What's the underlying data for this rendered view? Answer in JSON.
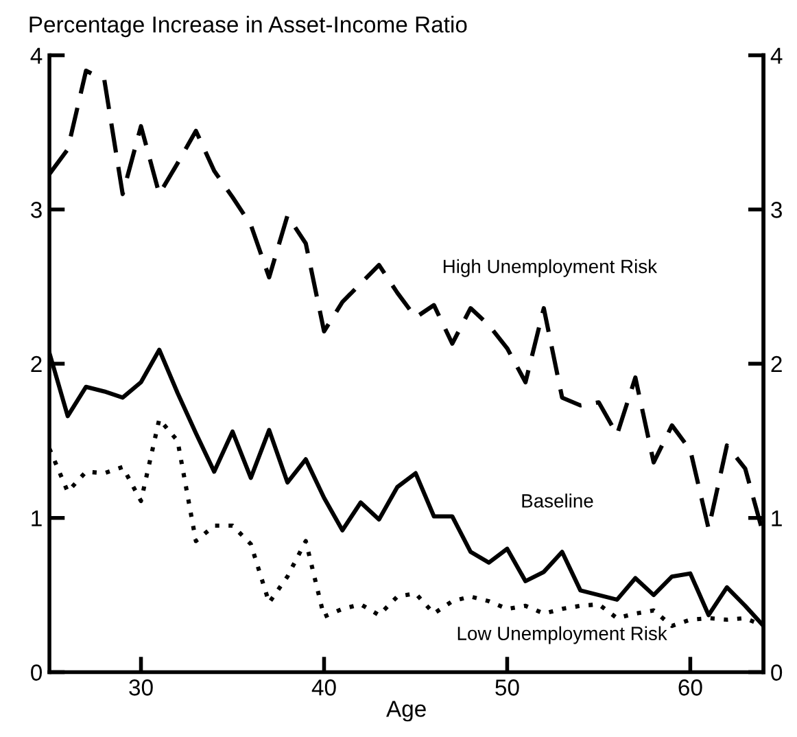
{
  "chart_data": {
    "type": "line",
    "title": "Percentage Increase in Asset-Income Ratio",
    "xlabel": "Age",
    "x": [
      25,
      26,
      27,
      28,
      29,
      30,
      31,
      32,
      33,
      34,
      35,
      36,
      37,
      38,
      39,
      40,
      41,
      42,
      43,
      44,
      45,
      46,
      47,
      48,
      49,
      50,
      51,
      52,
      53,
      54,
      55,
      56,
      57,
      58,
      59,
      60,
      61,
      62,
      63,
      64
    ],
    "series": [
      {
        "name": "High Unemployment Risk",
        "color": "#000000",
        "line_style": "dashed",
        "values": [
          3.23,
          3.39,
          3.9,
          3.84,
          3.1,
          3.54,
          3.1,
          3.3,
          3.51,
          3.25,
          3.08,
          2.9,
          2.56,
          2.96,
          2.78,
          2.21,
          2.4,
          2.52,
          2.64,
          2.46,
          2.3,
          2.38,
          2.13,
          2.36,
          2.25,
          2.1,
          1.88,
          2.36,
          1.78,
          1.73,
          1.75,
          1.54,
          1.91,
          1.36,
          1.6,
          1.44,
          0.93,
          1.47,
          1.32,
          0.89
        ]
      },
      {
        "name": "Baseline",
        "color": "#000000",
        "line_style": "solid",
        "values": [
          2.07,
          1.66,
          1.85,
          1.82,
          1.78,
          1.88,
          2.09,
          1.81,
          1.55,
          1.3,
          1.56,
          1.26,
          1.57,
          1.23,
          1.38,
          1.13,
          0.92,
          1.1,
          0.99,
          1.2,
          1.29,
          1.01,
          1.01,
          0.78,
          0.71,
          0.8,
          0.59,
          0.65,
          0.78,
          0.53,
          0.5,
          0.47,
          0.61,
          0.5,
          0.62,
          0.64,
          0.37,
          0.55,
          0.43,
          0.3
        ]
      },
      {
        "name": "Low Unemployment Risk",
        "color": "#000000",
        "line_style": "dotted",
        "values": [
          1.45,
          1.17,
          1.3,
          1.29,
          1.33,
          1.11,
          1.64,
          1.5,
          0.85,
          0.95,
          0.95,
          0.83,
          0.45,
          0.62,
          0.85,
          0.36,
          0.41,
          0.44,
          0.37,
          0.49,
          0.51,
          0.38,
          0.46,
          0.49,
          0.46,
          0.41,
          0.43,
          0.38,
          0.41,
          0.43,
          0.44,
          0.35,
          0.38,
          0.4,
          0.3,
          0.34,
          0.35,
          0.34,
          0.35,
          0.3
        ]
      }
    ],
    "xlim": [
      25,
      64
    ],
    "xticks": [
      30,
      40,
      50,
      60
    ],
    "ylim": [
      0,
      4
    ],
    "yticks": [
      0,
      1,
      2,
      3,
      4
    ],
    "y2lim": [
      0,
      4
    ],
    "y2ticks": [
      0,
      1,
      2,
      3,
      4
    ],
    "marker": "none",
    "grid": false,
    "legend": false
  }
}
